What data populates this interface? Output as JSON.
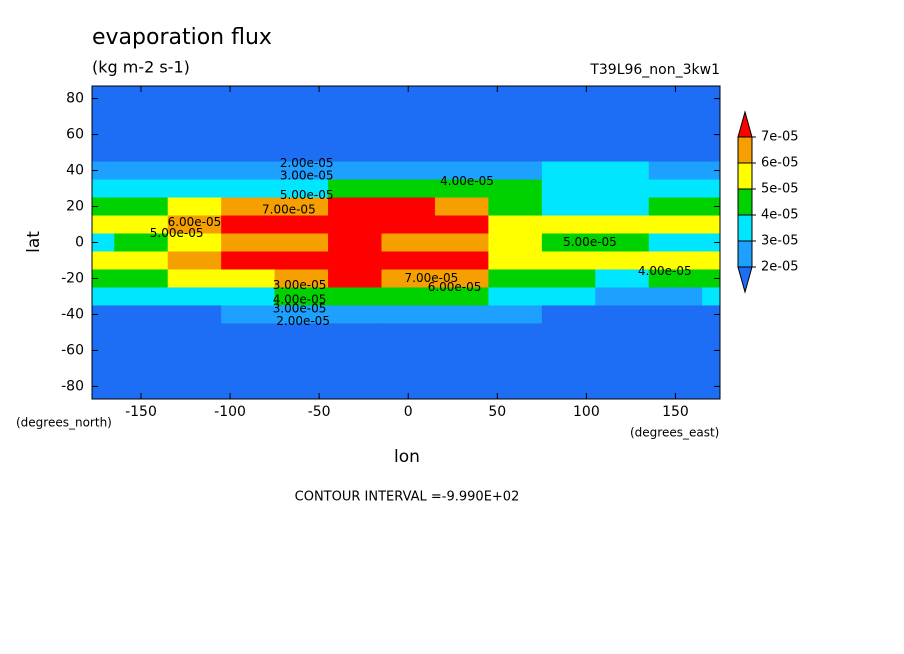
{
  "chart_data": {
    "type": "contour",
    "title": "evaporation flux",
    "subtitle": "(kg m-2 s-1)",
    "run_label": "T39L96_non_3kw1",
    "x_label": "lon",
    "y_label": "lat",
    "x_units": "(degrees_east)",
    "y_units": "(degrees_north)",
    "footer": "CONTOUR INTERVAL =-9.990E+02",
    "xlim": [
      -177.5,
      175
    ],
    "ylim": [
      -87,
      87
    ],
    "xticks": [
      -150,
      -100,
      -50,
      0,
      50,
      100,
      150
    ],
    "yticks": [
      -80,
      -60,
      -40,
      -20,
      0,
      20,
      40,
      60,
      80
    ],
    "x": [
      -180,
      -150,
      -120,
      -90,
      -60,
      -30,
      0,
      30,
      60,
      90,
      120,
      150,
      180
    ],
    "y": [
      90,
      80,
      70,
      60,
      50,
      40,
      30,
      20,
      10,
      0,
      -10,
      -20,
      -30,
      -40,
      -50,
      -60,
      -70,
      -80,
      -90
    ],
    "z": [
      [
        5e-06,
        5e-06,
        5e-06,
        5e-06,
        5e-06,
        5e-06,
        5e-06,
        5e-06,
        5e-06,
        5e-06,
        5e-06,
        5e-06,
        5e-06
      ],
      [
        6e-06,
        6e-06,
        6e-06,
        6e-06,
        6e-06,
        6e-06,
        6e-06,
        6e-06,
        6e-06,
        6e-06,
        6e-06,
        6e-06,
        6e-06
      ],
      [
        8e-06,
        8e-06,
        8e-06,
        8e-06,
        8e-06,
        8e-06,
        8e-06,
        8e-06,
        8e-06,
        8e-06,
        8e-06,
        8e-06,
        8e-06
      ],
      [
        1e-05,
        1e-05,
        1e-05,
        1e-05,
        1e-05,
        1e-05,
        1e-05,
        1e-05,
        1e-05,
        1e-05,
        1e-05,
        1e-05,
        1e-05
      ],
      [
        1.5e-05,
        1.5e-05,
        1.5e-05,
        1.5e-05,
        1.5e-05,
        1.5e-05,
        1.5e-05,
        1.5e-05,
        1.5e-05,
        1.5e-05,
        1.5e-05,
        1.5e-05,
        1.5e-05
      ],
      [
        2.2e-05,
        2.2e-05,
        2.3e-05,
        2.3e-05,
        2.4e-05,
        2.4e-05,
        2.3e-05,
        2.4e-05,
        2.6e-05,
        3.2e-05,
        3e-05,
        2.5e-05,
        2.2e-05
      ],
      [
        3.2e-05,
        3.3e-05,
        3.5e-05,
        3.6e-05,
        3.8e-05,
        4.2e-05,
        4.5e-05,
        4.6e-05,
        4.4e-05,
        3.4e-05,
        3.2e-05,
        3.3e-05,
        3.2e-05
      ],
      [
        4.6e-05,
        4.8e-05,
        5.5e-05,
        6.2e-05,
        6.8e-05,
        7.2e-05,
        7e-05,
        6.5e-05,
        4.8e-05,
        3.6e-05,
        3.5e-05,
        4.2e-05,
        4.6e-05
      ],
      [
        5.3e-05,
        5.6e-05,
        6.5e-05,
        7.3e-05,
        7.5e-05,
        7.6e-05,
        7.5e-05,
        7.2e-05,
        5.8e-05,
        5.2e-05,
        5.3e-05,
        5.2e-05,
        5.3e-05
      ],
      [
        3.5e-05,
        4.5e-05,
        5.2e-05,
        6e-05,
        6.5e-05,
        7e-05,
        6.5e-05,
        6e-05,
        5e-05,
        4.8e-05,
        4.5e-05,
        3.8e-05,
        3.5e-05
      ],
      [
        5.2e-05,
        5.4e-05,
        6.2e-05,
        7.2e-05,
        7.5e-05,
        7.6e-05,
        7.6e-05,
        7.4e-05,
        5.5e-05,
        5e-05,
        5.2e-05,
        5.4e-05,
        5.2e-05
      ],
      [
        4.4e-05,
        4.6e-05,
        5e-05,
        5.5e-05,
        6.5e-05,
        7.2e-05,
        6.8e-05,
        6e-05,
        4.6e-05,
        4.2e-05,
        3.8e-05,
        4e-05,
        4.4e-05
      ],
      [
        3e-05,
        3.2e-05,
        3.3e-05,
        3.6e-05,
        4.2e-05,
        4.6e-05,
        4.5e-05,
        4.2e-05,
        3.6e-05,
        3e-05,
        2.8e-05,
        2.8e-05,
        3e-05
      ],
      [
        1.8e-05,
        1.8e-05,
        1.9e-05,
        2e-05,
        2.1e-05,
        2.2e-05,
        2.2e-05,
        2.1e-05,
        2e-05,
        1.9e-05,
        1.8e-05,
        1.8e-05,
        1.8e-05
      ],
      [
        1.2e-05,
        1.2e-05,
        1.2e-05,
        1.2e-05,
        1.2e-05,
        1.2e-05,
        1.2e-05,
        1.2e-05,
        1.2e-05,
        1.2e-05,
        1.2e-05,
        1.2e-05,
        1.2e-05
      ],
      [
        9e-06,
        9e-06,
        9e-06,
        9e-06,
        9e-06,
        9e-06,
        9e-06,
        9e-06,
        9e-06,
        9e-06,
        9e-06,
        9e-06,
        9e-06
      ],
      [
        7e-06,
        7e-06,
        7e-06,
        7e-06,
        7e-06,
        7e-06,
        7e-06,
        7e-06,
        7e-06,
        7e-06,
        7e-06,
        7e-06,
        7e-06
      ],
      [
        6e-06,
        6e-06,
        6e-06,
        6e-06,
        6e-06,
        6e-06,
        6e-06,
        6e-06,
        6e-06,
        6e-06,
        6e-06,
        6e-06,
        6e-06
      ],
      [
        5e-06,
        5e-06,
        5e-06,
        5e-06,
        5e-06,
        5e-06,
        5e-06,
        5e-06,
        5e-06,
        5e-06,
        5e-06,
        5e-06,
        5e-06
      ]
    ],
    "levels": [
      {
        "value": 2e-05,
        "label": "2e-05"
      },
      {
        "value": 3e-05,
        "label": "3e-05"
      },
      {
        "value": 4e-05,
        "label": "4e-05"
      },
      {
        "value": 5e-05,
        "label": "5e-05"
      },
      {
        "value": 6e-05,
        "label": "6e-05"
      },
      {
        "value": 7e-05,
        "label": "7e-05"
      }
    ],
    "colors": [
      "#1e6ef5",
      "#1ea0ff",
      "#00e6ff",
      "#00d200",
      "#ffff00",
      "#f5a000",
      "#ff0000"
    ],
    "contour_labels": [
      {
        "value": 2e-05,
        "label": "2.00e-05",
        "lon": -57,
        "lat": 44
      },
      {
        "value": 3e-05,
        "label": "3.00e-05",
        "lon": -57,
        "lat": 37
      },
      {
        "value": 5e-05,
        "label": "5.00e-05",
        "lon": -57,
        "lat": 26
      },
      {
        "value": 7e-05,
        "label": "7.00e-05",
        "lon": -67,
        "lat": 18
      },
      {
        "value": 6e-05,
        "label": "6.00e-05",
        "lon": -120,
        "lat": 11
      },
      {
        "value": 5e-05,
        "label": "5.00e-05",
        "lon": -130,
        "lat": 5
      },
      {
        "value": 4e-05,
        "label": "4.00e-05",
        "lon": 33,
        "lat": 34
      },
      {
        "value": 5e-05,
        "label": "5.00e-05",
        "lon": 102,
        "lat": 0
      },
      {
        "value": 4e-05,
        "label": "4.00e-05",
        "lon": 144,
        "lat": -16
      },
      {
        "value": 7e-05,
        "label": "7.00e-05",
        "lon": 13,
        "lat": -20
      },
      {
        "value": 6e-05,
        "label": "6.00e-05",
        "lon": 26,
        "lat": -25
      },
      {
        "value": 3e-05,
        "label": "3.00e-05",
        "lon": -61,
        "lat": -24
      },
      {
        "value": 4e-05,
        "label": "4.00e-05",
        "lon": -61,
        "lat": -32
      },
      {
        "value": 3e-05,
        "label": "3.00e-05",
        "lon": -61,
        "lat": -37
      },
      {
        "value": 2e-05,
        "label": "2.00e-05",
        "lon": -59,
        "lat": -44
      }
    ]
  }
}
